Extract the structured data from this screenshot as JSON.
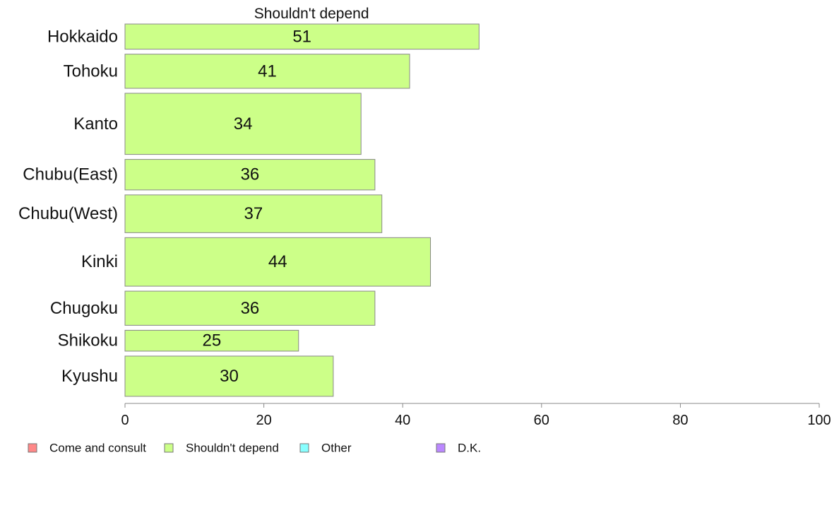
{
  "chart_data": {
    "type": "bar",
    "orientation": "horizontal",
    "title": "Shouldn't depend",
    "categories": [
      "Hokkaido",
      "Tohoku",
      "Kanto",
      "Chubu(East)",
      "Chubu(West)",
      "Kinki",
      "Chugoku",
      "Shikoku",
      "Kyushu"
    ],
    "values": [
      51,
      41,
      34,
      36,
      37,
      44,
      36,
      25,
      30
    ],
    "value_labels": [
      "51",
      "41",
      "34",
      "36",
      "37",
      "44",
      "36",
      "25",
      "30"
    ],
    "bar_thickness_relative": [
      0.7,
      0.95,
      1.7,
      0.85,
      1.05,
      1.35,
      0.95,
      0.58,
      1.12
    ],
    "xlim": [
      0,
      100
    ],
    "xticks": [
      0,
      20,
      40,
      60,
      80,
      100
    ],
    "xtick_labels": [
      "0",
      "20",
      "40",
      "60",
      "80",
      "100"
    ],
    "xlabel": "",
    "ylabel": "",
    "grid": false,
    "bar_color": "#ccff88",
    "bar_edge_color": "#888888",
    "legend": {
      "placement": "bottom",
      "entries": [
        {
          "label": "Come and consult",
          "color": "#ff8888"
        },
        {
          "label": "Shouldn't depend",
          "color": "#ccff88"
        },
        {
          "label": "Other",
          "color": "#88ffff"
        },
        {
          "label": "D.K.",
          "color": "#bb88ff"
        }
      ]
    }
  }
}
